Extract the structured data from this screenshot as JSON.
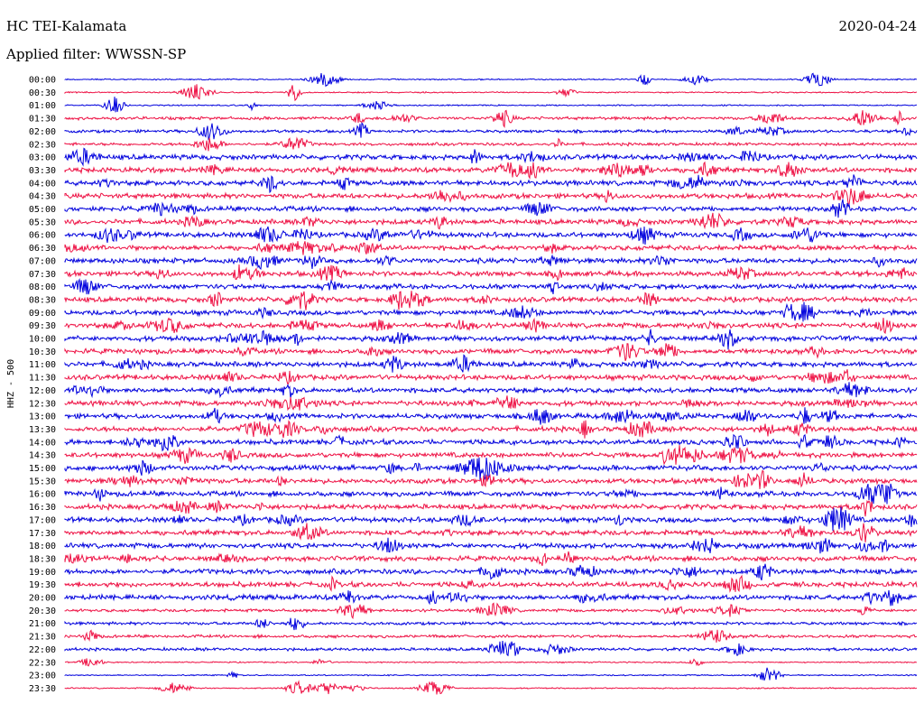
{
  "header": {
    "station": "HC TEI-Kalamata",
    "date": "2020-04-24",
    "filter_label": "Applied filter: WWSSN-SP"
  },
  "chart_data": {
    "type": "line",
    "title": "HC TEI-Kalamata",
    "ylabel": "HHZ - 500",
    "row_labels": [
      "00:00",
      "00:30",
      "01:00",
      "01:30",
      "02:00",
      "02:30",
      "03:00",
      "03:30",
      "04:00",
      "04:30",
      "05:00",
      "05:30",
      "06:00",
      "06:30",
      "07:00",
      "07:30",
      "08:00",
      "08:30",
      "09:00",
      "09:30",
      "10:00",
      "10:30",
      "11:00",
      "11:30",
      "12:00",
      "12:30",
      "13:00",
      "13:30",
      "14:00",
      "14:30",
      "15:00",
      "15:30",
      "16:00",
      "16:30",
      "17:00",
      "17:30",
      "18:00",
      "18:30",
      "19:00",
      "19:30",
      "20:00",
      "20:30",
      "21:00",
      "21:30",
      "22:00",
      "22:30",
      "23:00",
      "23:30"
    ],
    "colors": [
      "#0000dd",
      "#ee1144"
    ]
  }
}
